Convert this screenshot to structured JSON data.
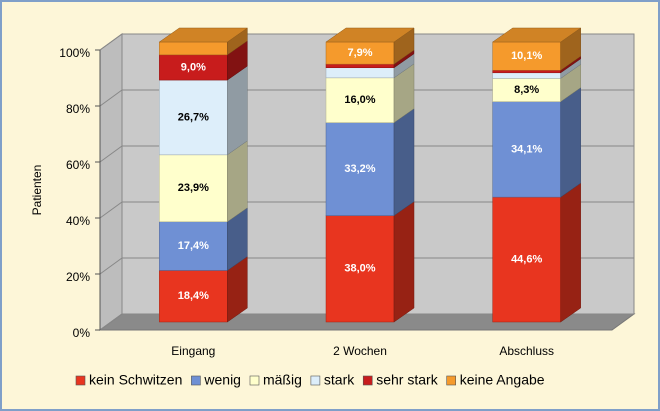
{
  "chart_data": {
    "type": "bar3d_stacked",
    "y_label": "Patienten",
    "categories": [
      "Eingang",
      "2 Wochen",
      "Abschluss"
    ],
    "series": [
      {
        "name": "kein Schwitzen",
        "color": "#e8351f",
        "values": [
          18.4,
          38.0,
          44.6
        ],
        "value_labels": [
          "18,4%",
          "38,0%",
          "44,6%"
        ]
      },
      {
        "name": "wenig",
        "color": "#6f90d4",
        "values": [
          17.4,
          33.2,
          34.1
        ],
        "value_labels": [
          "17,4%",
          "33,2%",
          "34,1%"
        ]
      },
      {
        "name": "mäßig",
        "color": "#ffffcc",
        "values": [
          23.9,
          16.0,
          8.3
        ],
        "value_labels": [
          "23,9%",
          "16,0%",
          "8,3%"
        ]
      },
      {
        "name": "stark",
        "color": "#ddeefa",
        "values": [
          26.7,
          3.6,
          2.0
        ],
        "value_labels": [
          "26,7%",
          null,
          null
        ]
      },
      {
        "name": "sehr stark",
        "color": "#c81c1c",
        "values": [
          9.0,
          1.3,
          0.9
        ],
        "value_labels": [
          "9,0%",
          null,
          null
        ]
      },
      {
        "name": "keine Angabe",
        "color": "#f59a2c",
        "values": [
          4.6,
          7.9,
          10.1
        ],
        "value_labels": [
          null,
          "7,9%",
          "10,1%"
        ]
      }
    ],
    "ylim": [
      0,
      100
    ],
    "yticks": [
      {
        "value": 0,
        "label": "0%"
      },
      {
        "value": 20,
        "label": "20%"
      },
      {
        "value": 40,
        "label": "40%"
      },
      {
        "value": 60,
        "label": "60%"
      },
      {
        "value": 80,
        "label": "80%"
      },
      {
        "value": 100,
        "label": "100%"
      }
    ],
    "grid": true
  }
}
